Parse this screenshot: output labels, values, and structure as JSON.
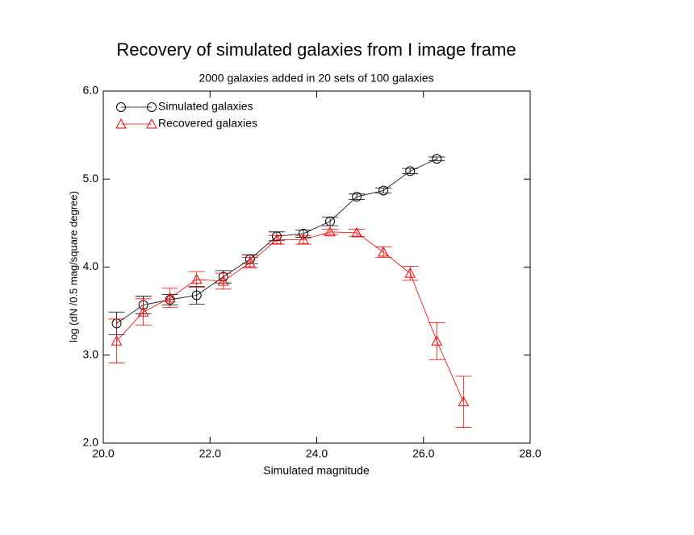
{
  "chart_data": {
    "type": "line",
    "title": "Recovery of simulated galaxies from I image frame",
    "subtitle": "2000 galaxies added in 20 sets of 100 galaxies",
    "x_label": "Simulated magnitude",
    "y_label": "log (dN /0.5 mag/square degree)",
    "xlim": [
      20,
      28
    ],
    "ylim": [
      2,
      6
    ],
    "xticks": [
      {
        "value": 20,
        "label": "20.0"
      },
      {
        "value": 22,
        "label": "22.0"
      },
      {
        "value": 24,
        "label": "24.0"
      },
      {
        "value": 26,
        "label": "26.0"
      },
      {
        "value": 28,
        "label": "28.0"
      }
    ],
    "yticks": [
      {
        "value": 2,
        "label": "2.0"
      },
      {
        "value": 3,
        "label": "3.0"
      },
      {
        "value": 4,
        "label": "4.0"
      },
      {
        "value": 5,
        "label": "5.0"
      },
      {
        "value": 6,
        "label": "6.0"
      }
    ],
    "legend": "upper left",
    "series": [
      {
        "name": "Simulated galaxies",
        "color": "#000000",
        "marker": "circle",
        "x": [
          20.25,
          20.75,
          21.25,
          21.75,
          22.25,
          22.75,
          23.25,
          23.75,
          24.25,
          24.75,
          25.25,
          25.75,
          26.25
        ],
        "values": [
          3.36,
          3.57,
          3.63,
          3.68,
          3.89,
          4.09,
          4.35,
          4.38,
          4.52,
          4.8,
          4.87,
          5.09,
          5.23
        ],
        "errors": [
          0.13,
          0.1,
          0.06,
          0.1,
          0.07,
          0.05,
          0.05,
          0.04,
          0.05,
          0.03,
          0.03,
          0.03,
          0.02
        ]
      },
      {
        "name": "Recovered galaxies",
        "color": "#ff0000",
        "marker": "triangle",
        "x": [
          20.25,
          20.75,
          21.25,
          21.75,
          22.25,
          22.75,
          23.25,
          23.75,
          24.25,
          24.75,
          25.25,
          25.75,
          26.25,
          26.75
        ],
        "values": [
          3.16,
          3.49,
          3.65,
          3.86,
          3.84,
          4.05,
          4.31,
          4.31,
          4.4,
          4.39,
          4.17,
          3.93,
          3.16,
          2.47
        ],
        "errors": [
          0.25,
          0.15,
          0.11,
          0.09,
          0.09,
          0.06,
          0.05,
          0.05,
          0.03,
          0.04,
          0.06,
          0.08,
          0.21,
          0.29
        ]
      }
    ]
  }
}
